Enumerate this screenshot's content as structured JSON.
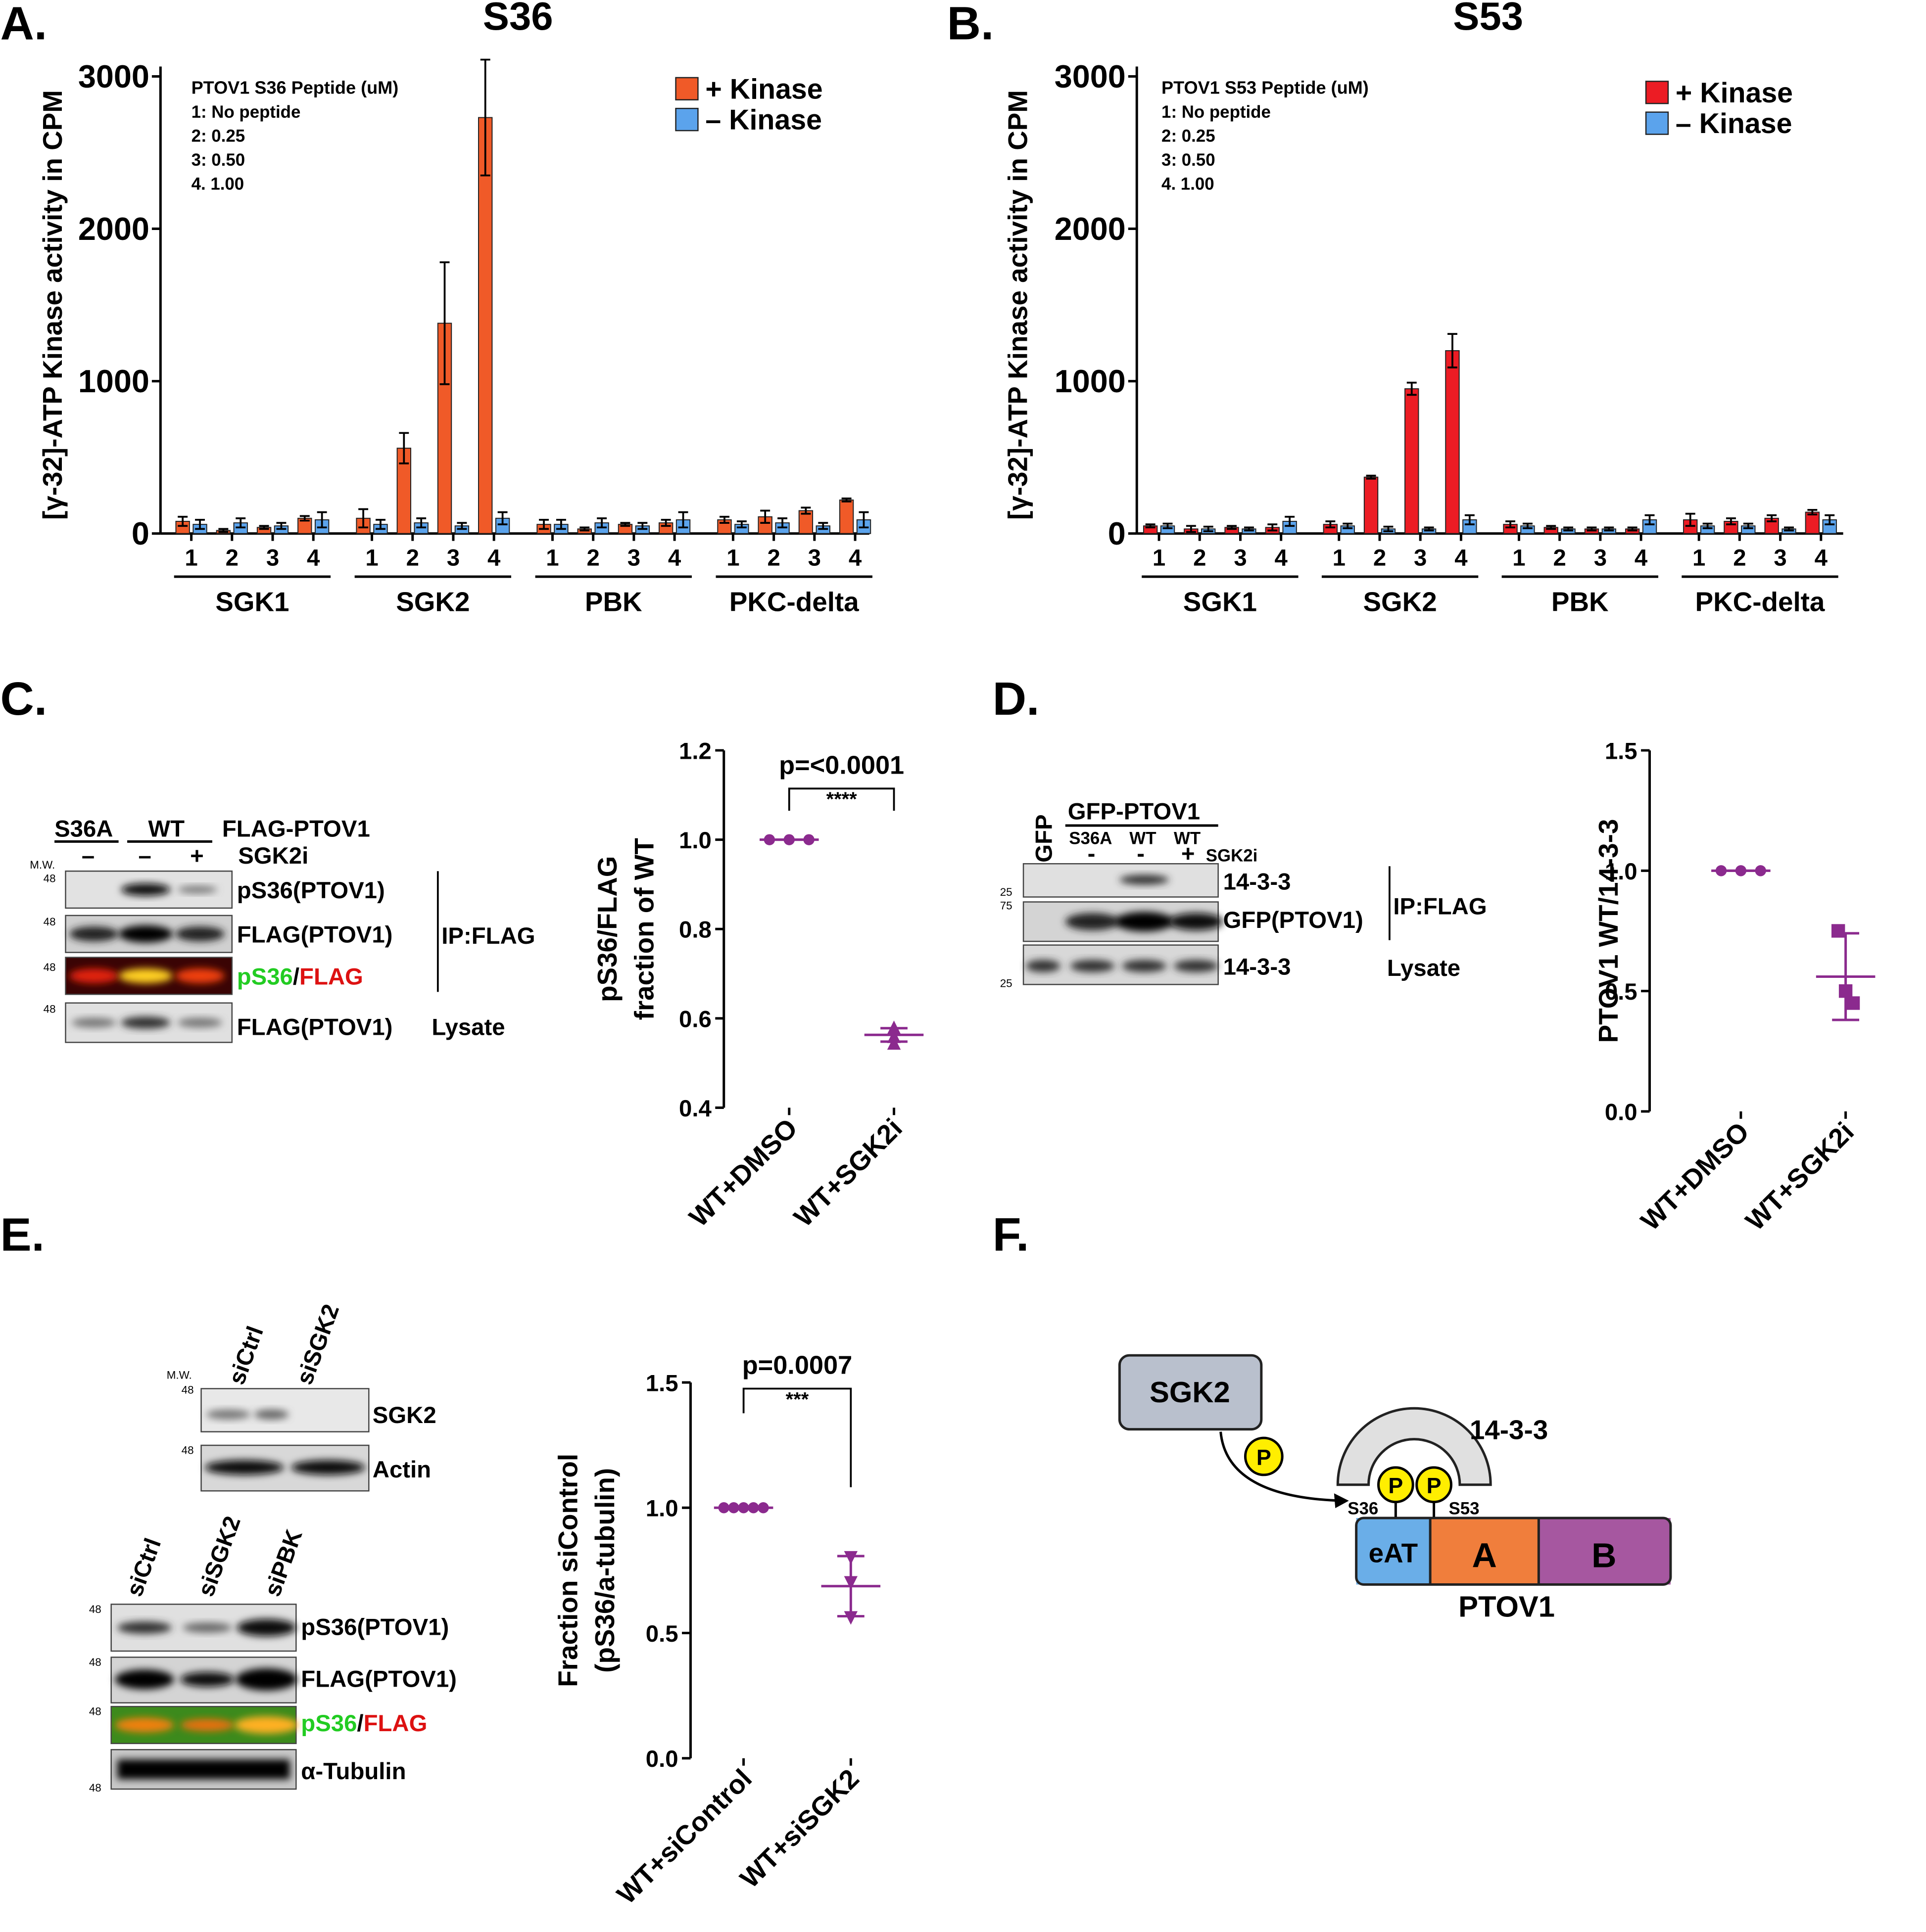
{
  "panel_letters": [
    "A.",
    "B.",
    "C.",
    "D.",
    "E.",
    "F."
  ],
  "chart_data": [
    {
      "type": "bar",
      "title": "S36",
      "ylabel": [
        "[γ-32]-ATP Kinase activity in CPM"
      ],
      "annotation": [
        "PTOV1 S36 Peptide (uM)",
        "1: No peptide",
        "2: 0.25",
        "3: 0.50",
        "4. 1.00"
      ],
      "categories": [
        "1",
        "2",
        "3",
        "4",
        "1",
        "2",
        "3",
        "4",
        "1",
        "2",
        "3",
        "4",
        "1",
        "2",
        "3",
        "4"
      ],
      "groups": [
        "SGK1",
        "SGK2",
        "PBK",
        "PKC-delta"
      ],
      "series": [
        {
          "name": "+ Kinase",
          "color": "#f05a28",
          "values": [
            80,
            20,
            40,
            100,
            100,
            560,
            1380,
            2730,
            60,
            30,
            60,
            70,
            90,
            110,
            150,
            220
          ],
          "errors": [
            30,
            10,
            10,
            15,
            60,
            100,
            400,
            380,
            30,
            10,
            10,
            20,
            20,
            40,
            20,
            10
          ]
        },
        {
          "name": "– Kinase",
          "color": "#5ba3ec",
          "values": [
            60,
            70,
            50,
            90,
            60,
            70,
            50,
            100,
            60,
            70,
            50,
            90,
            60,
            70,
            50,
            90
          ],
          "errors": [
            30,
            30,
            20,
            50,
            30,
            30,
            20,
            40,
            30,
            30,
            20,
            50,
            20,
            30,
            20,
            50
          ]
        }
      ],
      "ylim": [
        0,
        3000
      ],
      "yticks": [
        0,
        1000,
        2000,
        3000
      ],
      "legend": "upper right"
    },
    {
      "type": "bar",
      "title": "S53",
      "ylabel": [
        "[γ-32]-ATP Kinase activity in CPM"
      ],
      "annotation": [
        "PTOV1 S53 Peptide (uM)",
        "1: No peptide",
        "2: 0.25",
        "3: 0.50",
        "4. 1.00"
      ],
      "categories": [
        "1",
        "2",
        "3",
        "4",
        "1",
        "2",
        "3",
        "4",
        "1",
        "2",
        "3",
        "4",
        "1",
        "2",
        "3",
        "4"
      ],
      "groups": [
        "SGK1",
        "SGK2",
        "PBK",
        "PKC-delta"
      ],
      "series": [
        {
          "name": "+ Kinase",
          "color": "#ec1c24",
          "values": [
            50,
            30,
            40,
            40,
            60,
            370,
            950,
            1200,
            60,
            40,
            30,
            30,
            90,
            80,
            100,
            140
          ],
          "errors": [
            10,
            20,
            10,
            20,
            20,
            10,
            40,
            110,
            20,
            10,
            10,
            10,
            40,
            20,
            20,
            15
          ]
        },
        {
          "name": "– Kinase",
          "color": "#5ba3ec",
          "values": [
            50,
            30,
            30,
            80,
            50,
            30,
            30,
            90,
            50,
            30,
            30,
            90,
            50,
            50,
            30,
            90
          ],
          "errors": [
            15,
            15,
            10,
            30,
            15,
            15,
            10,
            30,
            15,
            10,
            10,
            30,
            15,
            15,
            10,
            30
          ]
        }
      ],
      "ylim": [
        0,
        3000
      ],
      "yticks": [
        0,
        1000,
        2000,
        3000
      ],
      "legend": "upper right"
    },
    {
      "type": "dotplot",
      "ylabel": [
        "pS36/FLAG",
        "fraction of WT"
      ],
      "color": "#8b2a8e",
      "categories": [
        "WT+DMSO",
        "WT+SGK2i"
      ],
      "markers": [
        "circle",
        "triangle"
      ],
      "values": [
        [
          1.0,
          1.0,
          1.0
        ],
        [
          0.58,
          0.56,
          0.545
        ]
      ],
      "means": [
        1.0,
        0.563
      ],
      "errors": [
        0,
        0.015
      ],
      "ylim": [
        0.4,
        1.2
      ],
      "yticks": [
        0.4,
        0.6,
        0.8,
        {
          "value": 1,
          "label": "1.0"
        },
        1.2
      ],
      "pvalue": "p=<0.0001",
      "stars": "****"
    },
    {
      "type": "dotplot",
      "ylabel": [
        "PTOV1 WT/14-3-3"
      ],
      "color": "#8b2a8e",
      "categories": [
        "WT+DMSO",
        "WT+SGK2i"
      ],
      "markers": [
        "circle",
        "square"
      ],
      "values": [
        [
          1.0,
          1.0,
          1.0
        ],
        [
          0.75,
          0.5,
          0.45
        ]
      ],
      "means": [
        1.0,
        0.56
      ],
      "errors": [
        0,
        0.18
      ],
      "ylim": [
        0,
        1.5
      ],
      "yticks": [
        {
          "value": 0,
          "label": "0.0"
        },
        0.5,
        {
          "value": 1,
          "label": "1.0"
        },
        1.5
      ]
    },
    {
      "type": "dotplot",
      "ylabel": [
        "Fraction siControl",
        "(pS36/a-tubulin)"
      ],
      "color": "#8b2a8e",
      "categories": [
        "WT+siControl",
        "WT+siSGK2"
      ],
      "markers": [
        "circle",
        "triangle-down"
      ],
      "values": [
        [
          1.0,
          1.0,
          1.0,
          1.0,
          1.0
        ],
        [
          0.8,
          0.7,
          0.56
        ]
      ],
      "means": [
        1.0,
        0.687
      ],
      "errors": [
        0,
        0.12
      ],
      "ylim": [
        0,
        1.5
      ],
      "yticks": [
        {
          "value": 0,
          "label": "0.0"
        },
        0.5,
        {
          "value": 1,
          "label": "1.0"
        },
        1.5
      ],
      "pvalue": "p=0.0007",
      "stars": "***"
    }
  ],
  "blot_c": {
    "top_labels": [
      "S36A",
      "WT",
      "FLAG-PTOV1"
    ],
    "lane_signs": [
      "–",
      "–",
      "+"
    ],
    "treatment": "SGK2i",
    "mw": "M.W.",
    "mw_markers": [
      "48",
      "48",
      "48",
      "48"
    ],
    "band_labels": [
      "pS36(PTOV1)",
      "FLAG(PTOV1)",
      "FLAG(PTOV1)"
    ],
    "merge": [
      "pS36",
      "/",
      "FLAG"
    ],
    "ip": "IP:FLAG",
    "lysate": "Lysate"
  },
  "blot_d": {
    "control": "GFP",
    "construct": "GFP-PTOV1",
    "lanes": [
      "S36A",
      "WT",
      "WT"
    ],
    "lane_signs": [
      "-",
      "-",
      "+"
    ],
    "treatment": "SGK2i",
    "mw_markers": [
      "25",
      "75",
      "25"
    ],
    "band_labels": [
      "14-3-3",
      "GFP(PTOV1)",
      "14-3-3"
    ],
    "ip": "IP:FLAG",
    "lysate": "Lysate"
  },
  "blot_e": {
    "top_lanes": [
      "siCtrl",
      "siSGK2"
    ],
    "mw": "M.W.",
    "top_mw": [
      "48",
      "48"
    ],
    "top_bands": [
      "SGK2",
      "Actin"
    ],
    "lanes": [
      "siCtrl",
      "siSGK2",
      "siPBK"
    ],
    "mw_markers": [
      "48",
      "48",
      "48",
      "48"
    ],
    "band_labels": [
      "pS36(PTOV1)",
      "FLAG(PTOV1)",
      "α-Tubulin"
    ],
    "merge": [
      "pS36",
      "/",
      "FLAG"
    ]
  },
  "diagram": {
    "kinase": "SGK2",
    "phospho": [
      "P",
      "P",
      "P"
    ],
    "binder": "14-3-3",
    "sites": [
      "S36",
      "S53"
    ],
    "domains": [
      "eAT",
      "A",
      "B"
    ],
    "protein": "PTOV1"
  }
}
